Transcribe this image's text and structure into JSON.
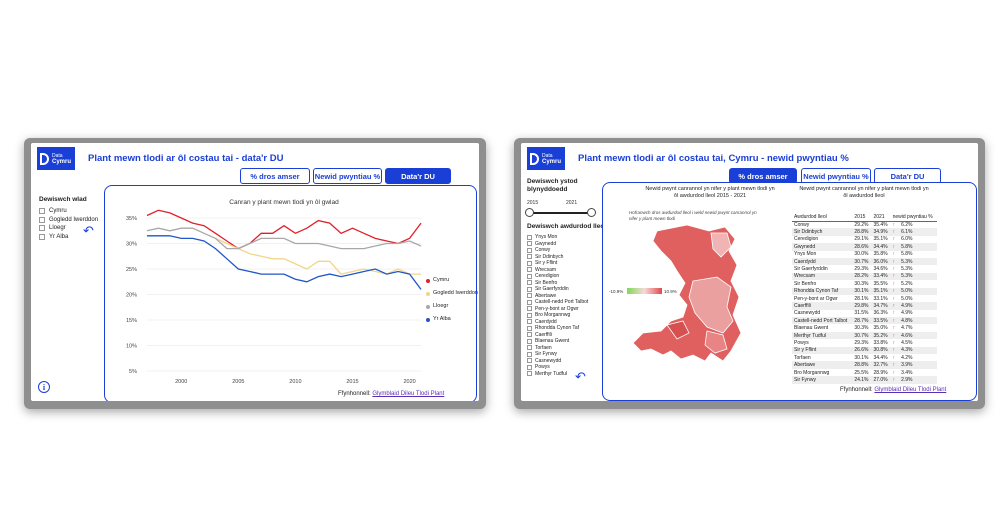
{
  "left": {
    "logo": {
      "line1": "Data",
      "line2": "Cymru"
    },
    "title": "Plant mewn tlodi ar ôl costau tai - data'r DU",
    "tabs": [
      "% dros amser",
      "Newid pwyntiau %",
      "Data'r DU"
    ],
    "active_tab": 2,
    "filter_label": "Dewiswch wlad",
    "countries": [
      "Cymru",
      "Gogledd Iwerddon",
      "Lloegr",
      "Yr Alba"
    ],
    "source_label": "Ffynhonnell:",
    "source_link": "Glymblaid Dileu Tlodi Plant"
  },
  "chart_data": {
    "type": "line",
    "title": "Canran y plant mewn tlodi yn ôl gwlad",
    "x": [
      1997,
      1998,
      1999,
      2000,
      2001,
      2002,
      2003,
      2004,
      2005,
      2006,
      2007,
      2008,
      2009,
      2010,
      2011,
      2012,
      2013,
      2014,
      2015,
      2016,
      2017,
      2018,
      2019,
      2020,
      2021
    ],
    "series": [
      {
        "name": "Cymru",
        "color": "#e0202c",
        "values": [
          35.5,
          36.5,
          36,
          35,
          34,
          33.5,
          32,
          30.5,
          29,
          30,
          32,
          32,
          33.5,
          32,
          33,
          34.5,
          34,
          32,
          33,
          32,
          31,
          30.5,
          30,
          31,
          34
        ]
      },
      {
        "name": "Gogledd Iwerddon",
        "color": "#f2d58a",
        "values": [
          null,
          null,
          null,
          null,
          null,
          null,
          31,
          30,
          29,
          28,
          27.5,
          27,
          27,
          26,
          25,
          26.5,
          26.5,
          24,
          24.5,
          25,
          24.5,
          24,
          25,
          24,
          24
        ]
      },
      {
        "name": "Lloegr",
        "color": "#a8a8a8",
        "values": [
          32.5,
          33,
          32.5,
          33,
          33,
          32,
          31,
          29,
          29,
          30,
          31,
          31,
          31,
          30,
          30,
          30,
          29.5,
          29,
          29,
          29,
          29.5,
          30,
          30,
          30.5,
          29.5
        ]
      },
      {
        "name": "Yr Alba",
        "color": "#1f56c8",
        "values": [
          31.5,
          31.5,
          31.5,
          31,
          31,
          30.5,
          29,
          27,
          25,
          24.5,
          24,
          24,
          24,
          23,
          22.5,
          23.5,
          24,
          23.5,
          24,
          24.5,
          25,
          24,
          24.5,
          24,
          21
        ]
      }
    ],
    "ylim": [
      5,
      35
    ],
    "yticks": [
      "5%",
      "10%",
      "15%",
      "20%",
      "25%",
      "30%",
      "35%"
    ],
    "xticks": [
      "2000",
      "2005",
      "2010",
      "2015",
      "2020"
    ],
    "legend": "right",
    "grid": "horizontal"
  },
  "right": {
    "logo": {
      "line1": "Data",
      "line2": "Cymru"
    },
    "title": "Plant mewn tlodi ar ôl costau tai, Cymru - newid pwyntiau %",
    "tabs": [
      "% dros amser",
      "Newid pwyntiau %",
      "Data'r DU"
    ],
    "active_tab": 0,
    "period_label": "Dewiswch ystod blynyddoedd",
    "year_from": "2015",
    "year_to": "2021",
    "authority_label": "Dewiswch awdurdod lleol",
    "authorities": [
      "Ynys Mon",
      "Gwynedd",
      "Conwy",
      "Sir Ddinbych",
      "Sir y Fflint",
      "Wrecsam",
      "Ceredigion",
      "Sir Benfro",
      "Sir Gaerfyrddin",
      "Abertawe",
      "Castell-nedd Port Talbot",
      "Pen-y-bont ar Ogwr",
      "Bro Morgannwg",
      "Caerdydd",
      "Rhondda Cynon Taf",
      "Caerffili",
      "Blaenau Gwent",
      "Torfaen",
      "Sir Fynwy",
      "Casnewydd",
      "Powys",
      "Merthyr Tudful"
    ],
    "map_title": "Newid pwynt canrannol yn nifer y plant mewn tlodi yn ôl awdurdod lleol 2015 - 2021",
    "map_subtitle": "Hofranwch dros awdurdod lleol i weld newid pwynt canrannol yn nifer y plant mewn tlodi",
    "scale_min": "-10.9%",
    "scale_max": "10.9%",
    "table_title": "Newid pwynt canrannol yn nifer y plant mewn tlodi yn ôl awdurdod lleol",
    "table_columns": [
      "Awdurdod lleol",
      "2015",
      "2021",
      "newid pwyntiau %"
    ],
    "table_rows": [
      [
        "Conwy",
        "29.2%",
        "35.4%",
        "6.2%"
      ],
      [
        "Sir Ddinbych",
        "28.8%",
        "34.9%",
        "6.1%"
      ],
      [
        "Ceredigion",
        "29.1%",
        "35.1%",
        "6.0%"
      ],
      [
        "Gwynedd",
        "28.6%",
        "34.4%",
        "5.8%"
      ],
      [
        "Ynys Mon",
        "30.0%",
        "35.8%",
        "5.8%"
      ],
      [
        "Caerdydd",
        "30.7%",
        "36.0%",
        "5.3%"
      ],
      [
        "Sir Gaerfyrddin",
        "29.3%",
        "34.6%",
        "5.3%"
      ],
      [
        "Wrecsam",
        "28.2%",
        "33.4%",
        "5.3%"
      ],
      [
        "Sir Benfro",
        "30.3%",
        "35.5%",
        "5.2%"
      ],
      [
        "Rhondda Cynon Taf",
        "30.1%",
        "35.1%",
        "5.0%"
      ],
      [
        "Pen-y-bont ar Ogwr",
        "28.1%",
        "33.1%",
        "5.0%"
      ],
      [
        "Caerffili",
        "29.8%",
        "34.7%",
        "4.9%"
      ],
      [
        "Casnewydd",
        "31.5%",
        "36.3%",
        "4.9%"
      ],
      [
        "Castell-nedd Port Talbot",
        "28.7%",
        "33.5%",
        "4.8%"
      ],
      [
        "Blaenau Gwent",
        "30.3%",
        "35.0%",
        "4.7%"
      ],
      [
        "Merthyr Tudful",
        "30.7%",
        "35.2%",
        "4.6%"
      ],
      [
        "Powys",
        "29.3%",
        "33.8%",
        "4.5%"
      ],
      [
        "Sir y Fflint",
        "26.6%",
        "30.8%",
        "4.3%"
      ],
      [
        "Torfaen",
        "30.1%",
        "34.4%",
        "4.2%"
      ],
      [
        "Abertawe",
        "28.8%",
        "32.7%",
        "3.9%"
      ],
      [
        "Bro Morgannwg",
        "25.5%",
        "28.9%",
        "3.4%"
      ],
      [
        "Sir Fynwy",
        "24.1%",
        "27.0%",
        "2.9%"
      ]
    ],
    "source_label": "Ffynhonnell:",
    "source_link": "Glymblaid Dileu Tlodi Plant"
  }
}
